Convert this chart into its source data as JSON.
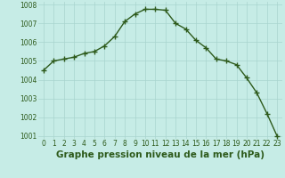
{
  "hours": [
    0,
    1,
    2,
    3,
    4,
    5,
    6,
    7,
    8,
    9,
    10,
    11,
    12,
    13,
    14,
    15,
    16,
    17,
    18,
    19,
    20,
    21,
    22,
    23
  ],
  "pressure": [
    1004.5,
    1005.0,
    1005.1,
    1005.2,
    1005.4,
    1005.5,
    1005.8,
    1006.3,
    1007.1,
    1007.5,
    1007.75,
    1007.75,
    1007.7,
    1007.0,
    1006.7,
    1006.1,
    1005.7,
    1005.1,
    1005.0,
    1004.8,
    1004.1,
    1003.3,
    1002.2,
    1001.0
  ],
  "line_color": "#2d5a1b",
  "marker": "+",
  "marker_size": 4,
  "marker_linewidth": 1.0,
  "bg_color": "#c6ece6",
  "grid_color": "#a8d4ce",
  "xlabel": "Graphe pression niveau de la mer (hPa)",
  "xlabel_fontsize": 7.5,
  "xlabel_color": "#2d5a1b",
  "tick_color": "#2d5a1b",
  "tick_fontsize": 5.5,
  "ylim": [
    1001,
    1008
  ],
  "yticks": [
    1001,
    1002,
    1003,
    1004,
    1005,
    1006,
    1007,
    1008
  ],
  "xticks": [
    0,
    1,
    2,
    3,
    4,
    5,
    6,
    7,
    8,
    9,
    10,
    11,
    12,
    13,
    14,
    15,
    16,
    17,
    18,
    19,
    20,
    21,
    22,
    23
  ],
  "line_width": 1.0
}
